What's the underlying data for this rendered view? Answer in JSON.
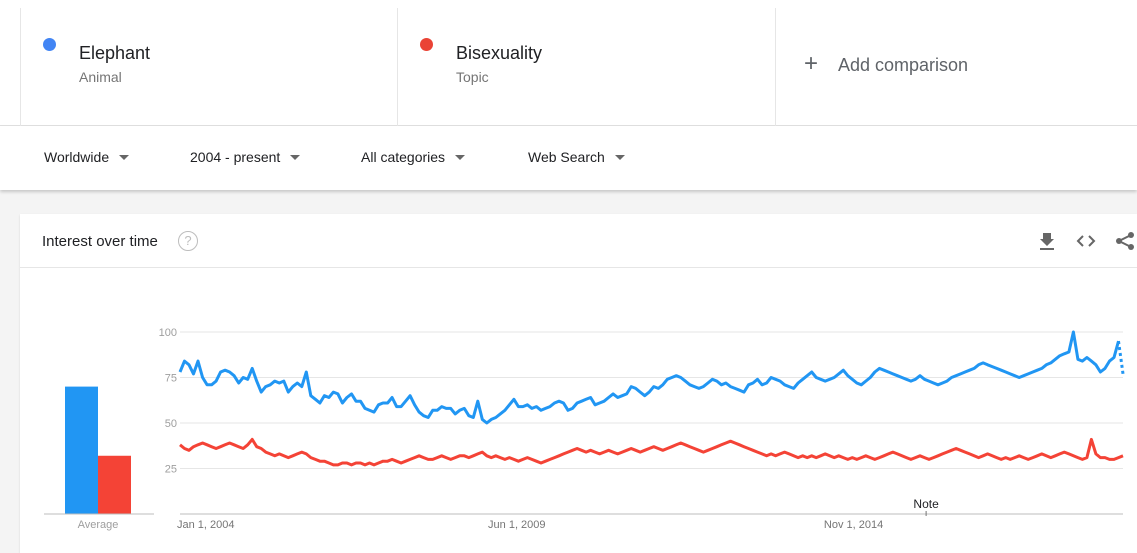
{
  "comparison": {
    "terms": [
      {
        "name": "Elephant",
        "type": "Animal",
        "color": "#4285f4"
      },
      {
        "name": "Bisexuality",
        "type": "Topic",
        "color": "#ea4335"
      }
    ],
    "add_label": "Add comparison",
    "add_icon": "plus-icon"
  },
  "filters": {
    "location": "Worldwide",
    "time_range": "2004 - present",
    "category": "All categories",
    "search_type": "Web Search"
  },
  "card": {
    "title": "Interest over time",
    "help_icon": "question-circle-icon",
    "actions": [
      "download-icon",
      "embed-icon",
      "share-icon"
    ]
  },
  "chart_data": {
    "type": "line",
    "y_ticks": [
      25,
      50,
      75,
      100
    ],
    "ylim": [
      0,
      100
    ],
    "x_tick_labels": [
      "Jan 1, 2004",
      "Jun 1, 2009",
      "Nov 1, 2014"
    ],
    "x_range": [
      "2004-01",
      "2019-03"
    ],
    "note_label": "Note",
    "note_date": "2016-01",
    "average_label": "Average",
    "averages": [
      {
        "name": "Elephant",
        "value": 70,
        "color": "#2196f3"
      },
      {
        "name": "Bisexuality",
        "value": 32,
        "color": "#f44336"
      }
    ],
    "series": [
      {
        "name": "Elephant",
        "color": "#2196f3",
        "partial_last_point": true,
        "values": [
          78,
          84,
          82,
          77,
          84,
          75,
          71,
          71,
          73,
          78,
          79,
          78,
          76,
          72,
          75,
          74,
          80,
          73,
          67,
          70,
          71,
          73,
          72,
          73,
          67,
          70,
          72,
          70,
          78,
          65,
          63,
          61,
          65,
          64,
          67,
          66,
          61,
          64,
          66,
          62,
          62,
          58,
          57,
          56,
          60,
          61,
          61,
          64,
          59,
          59,
          62,
          65,
          60,
          56,
          54,
          53,
          57,
          57,
          59,
          58,
          58,
          55,
          57,
          58,
          54,
          53,
          62,
          52,
          50,
          52,
          53,
          55,
          57,
          60,
          63,
          59,
          59,
          60,
          58,
          59,
          57,
          58,
          59,
          61,
          62,
          61,
          57,
          58,
          61,
          62,
          63,
          64,
          60,
          61,
          62,
          64,
          66,
          64,
          65,
          66,
          70,
          69,
          67,
          65,
          67,
          70,
          69,
          71,
          74,
          75,
          76,
          75,
          73,
          71,
          70,
          69,
          70,
          72,
          74,
          73,
          71,
          72,
          70,
          69,
          68,
          67,
          71,
          72,
          74,
          71,
          72,
          75,
          74,
          73,
          71,
          70,
          69,
          72,
          74,
          76,
          78,
          75,
          74,
          73,
          74,
          75,
          77,
          79,
          76,
          74,
          72,
          71,
          73,
          75,
          78,
          80,
          79,
          78,
          77,
          76,
          75,
          74,
          73,
          74,
          76,
          74,
          73,
          72,
          71,
          72,
          73,
          75,
          76,
          77,
          78,
          79,
          80,
          82,
          83,
          82,
          81,
          80,
          79,
          78,
          77,
          76,
          75,
          76,
          77,
          78,
          79,
          80,
          82,
          83,
          85,
          87,
          88,
          89,
          100,
          85,
          84,
          86,
          84,
          82,
          78,
          80,
          84,
          86,
          95,
          77
        ]
      },
      {
        "name": "Bisexuality",
        "color": "#f44336",
        "values": [
          38,
          36,
          35,
          37,
          38,
          39,
          38,
          37,
          36,
          37,
          38,
          39,
          38,
          37,
          36,
          38,
          41,
          37,
          36,
          34,
          33,
          32,
          33,
          32,
          31,
          32,
          33,
          34,
          33,
          31,
          30,
          29,
          29,
          28,
          27,
          27,
          28,
          28,
          27,
          28,
          28,
          27,
          28,
          27,
          28,
          29,
          29,
          30,
          29,
          28,
          29,
          30,
          31,
          32,
          31,
          30,
          30,
          31,
          32,
          31,
          30,
          31,
          32,
          32,
          31,
          32,
          33,
          34,
          32,
          31,
          32,
          31,
          30,
          31,
          30,
          29,
          30,
          31,
          30,
          29,
          28,
          29,
          30,
          31,
          32,
          33,
          34,
          35,
          36,
          35,
          34,
          35,
          34,
          33,
          34,
          35,
          34,
          33,
          34,
          35,
          36,
          35,
          34,
          35,
          36,
          37,
          36,
          35,
          36,
          37,
          38,
          39,
          38,
          37,
          36,
          35,
          34,
          35,
          36,
          37,
          38,
          39,
          40,
          39,
          38,
          37,
          36,
          35,
          34,
          33,
          32,
          33,
          32,
          33,
          34,
          33,
          32,
          31,
          32,
          31,
          32,
          31,
          32,
          33,
          32,
          31,
          32,
          31,
          30,
          31,
          30,
          31,
          32,
          31,
          30,
          31,
          32,
          33,
          34,
          33,
          32,
          31,
          30,
          31,
          32,
          31,
          30,
          31,
          32,
          33,
          34,
          35,
          36,
          35,
          34,
          33,
          32,
          31,
          32,
          33,
          32,
          31,
          30,
          31,
          30,
          31,
          32,
          31,
          30,
          31,
          32,
          33,
          32,
          31,
          32,
          33,
          34,
          33,
          32,
          31,
          30,
          31,
          41,
          33,
          31,
          31,
          30,
          30,
          31,
          32
        ]
      }
    ]
  }
}
